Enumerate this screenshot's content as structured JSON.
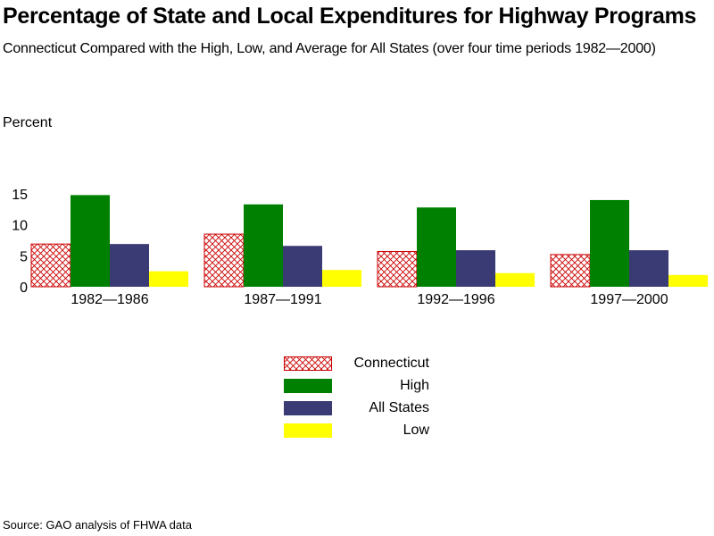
{
  "title": "Percentage of State and Local Expenditures for Highway Programs",
  "subtitle": "Connecticut Compared with the High, Low, and Average for All States (over four time periods 1982—2000)",
  "source": "Source: GAO analysis of FHWA data",
  "chart_data": {
    "type": "bar",
    "title": "Percentage of State and Local Expenditures for Highway Programs",
    "ylabel": "Percent",
    "xlabel": "",
    "ylim": [
      0,
      15
    ],
    "yticks": [
      0,
      5,
      10,
      15
    ],
    "categories": [
      "1982—1986",
      "1987—1991",
      "1992—1996",
      "1997—2000"
    ],
    "series": [
      {
        "name": "Connecticut",
        "values": [
          6.9,
          8.5,
          5.7,
          5.2
        ],
        "color": "#cc0000",
        "pattern": "crosshatch"
      },
      {
        "name": "High",
        "values": [
          14.8,
          13.3,
          12.8,
          14.0
        ],
        "color": "#008000"
      },
      {
        "name": "All States",
        "values": [
          6.9,
          6.6,
          5.9,
          5.9
        ],
        "color": "#3a3a75"
      },
      {
        "name": "Low",
        "values": [
          2.5,
          2.7,
          2.2,
          1.9
        ],
        "color": "#ffff00"
      }
    ],
    "grid": false,
    "legend_position": "bottom-center"
  }
}
